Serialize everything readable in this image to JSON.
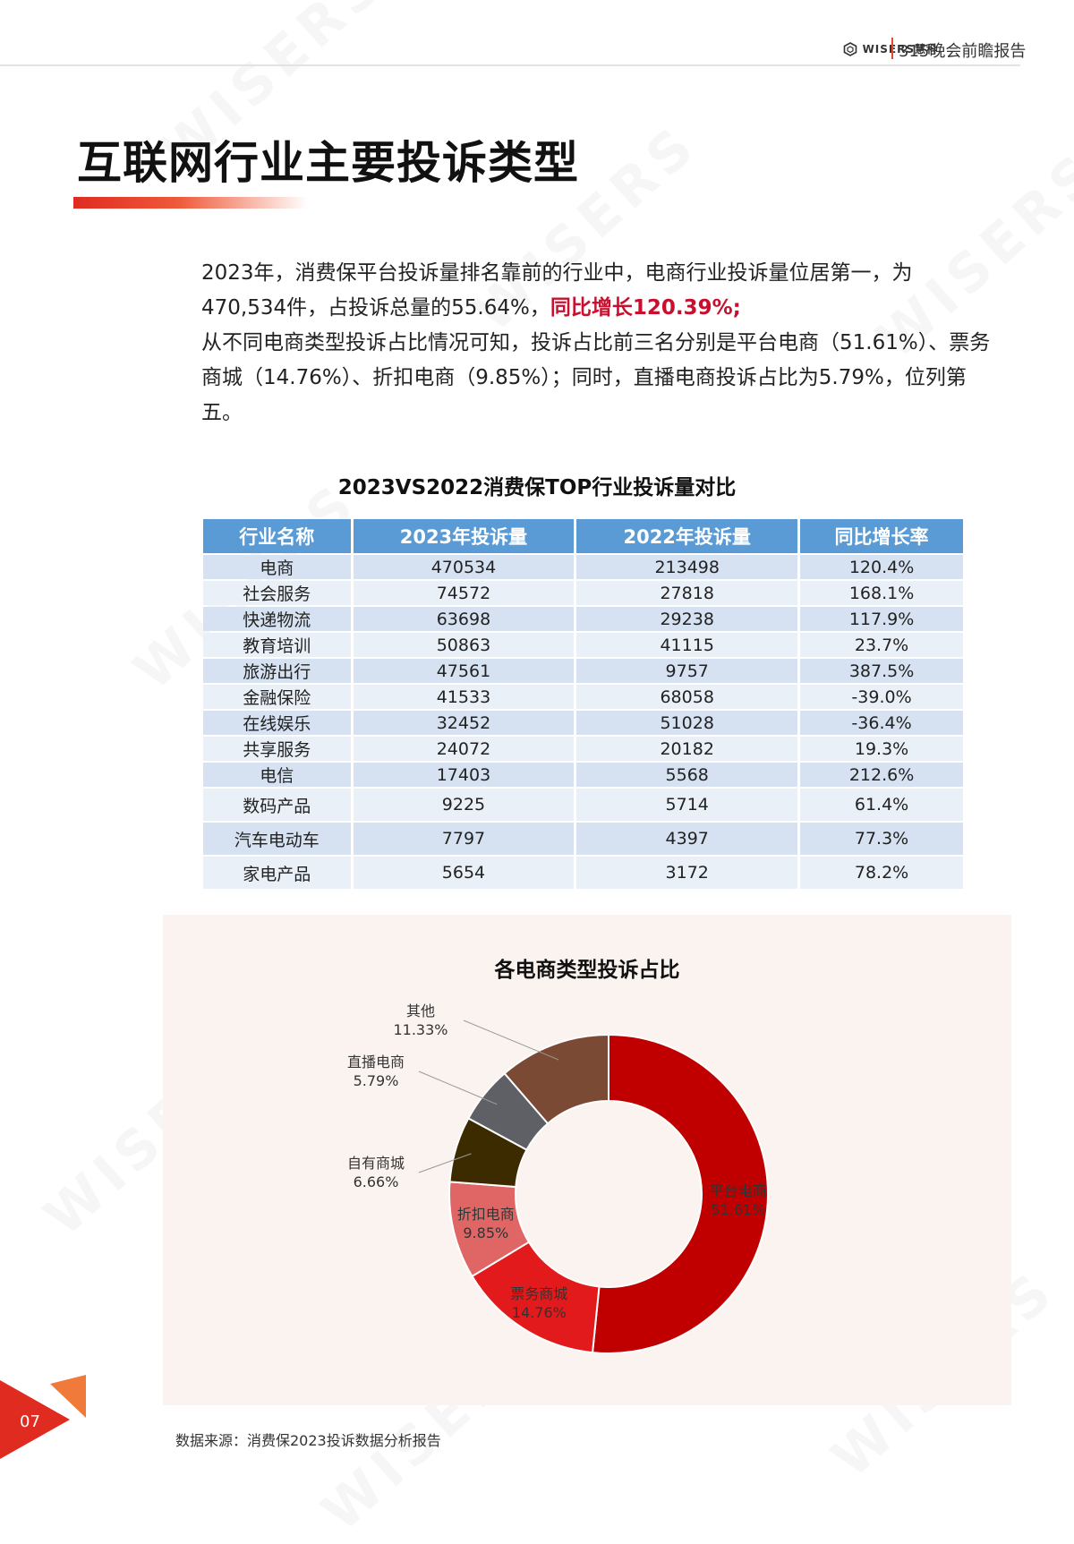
{
  "header": {
    "brand": "WISERS慧科",
    "report_label": "315晚会前瞻报告"
  },
  "page_title": "互联网行业主要投诉类型",
  "summary": {
    "line1": "2023年，消费保平台投诉量排名靠前的行业中，电商行业投诉量位居第一，为",
    "line2_text": "470,534件，占投诉总量的55.64%，",
    "line2_highlight": "同比增长120.39%;",
    "para2": "从不同电商类型投诉占比情况可知，投诉占比前三名分别是平台电商（51.61%）、票务商城（14.76%）、折扣电商（9.85%）；同时，直播电商投诉占比为5.79%，位列第五。"
  },
  "table": {
    "title": "2023VS2022消费保TOP行业投诉量对比",
    "columns": [
      "行业名称",
      "2023年投诉量",
      "2022年投诉量",
      "同比增长率"
    ],
    "rows": [
      [
        "电商",
        "470534",
        "213498",
        "120.4%"
      ],
      [
        "社会服务",
        "74572",
        "27818",
        "168.1%"
      ],
      [
        "快递物流",
        "63698",
        "29238",
        "117.9%"
      ],
      [
        "教育培训",
        "50863",
        "41115",
        "23.7%"
      ],
      [
        "旅游出行",
        "47561",
        "9757",
        "387.5%"
      ],
      [
        "金融保险",
        "41533",
        "68058",
        "-39.0%"
      ],
      [
        "在线娱乐",
        "32452",
        "51028",
        "-36.4%"
      ],
      [
        "共享服务",
        "24072",
        "20182",
        "19.3%"
      ],
      [
        "电信",
        "17403",
        "5568",
        "212.6%"
      ],
      [
        "数码产品",
        "9225",
        "5714",
        "61.4%"
      ],
      [
        "汽车电动车",
        "7797",
        "4397",
        "77.3%"
      ],
      [
        "家电产品",
        "5654",
        "3172",
        "78.2%"
      ]
    ]
  },
  "chart_data": {
    "type": "pie",
    "title": "各电商类型投诉占比",
    "labels": [
      "平台电商",
      "票务商城",
      "折扣电商",
      "自有商城",
      "直播电商",
      "其他"
    ],
    "values": [
      51.61,
      14.76,
      9.85,
      6.66,
      5.79,
      11.33
    ],
    "value_labels": [
      "51.61%",
      "14.76%",
      "9.85%",
      "6.66%",
      "5.79%",
      "11.33%"
    ],
    "colors": [
      "#c00000",
      "#e31a1c",
      "#e06666",
      "#3d2b00",
      "#5f5f66",
      "#7b4a35"
    ],
    "donut": true,
    "legend": "none"
  },
  "source": "数据来源：消费保2023投诉数据分析报告",
  "page_number": "07",
  "colors": {
    "accent": "#e7492c",
    "table_header": "#5b9bd5",
    "highlight": "#c8102e"
  }
}
